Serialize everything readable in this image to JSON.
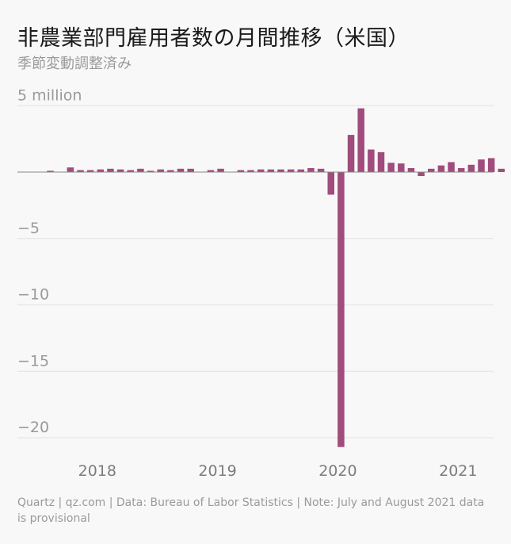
{
  "title": "非農業部門雇用者数の月間推移（米国）",
  "subtitle": "季節変動調整済み",
  "footnote": "Quartz | qz.com | Data: Bureau of Labor Statistics | Note: July and August 2021 data is provisional",
  "colors": {
    "bar": "#a04c7c",
    "grid": "#e2e0e0",
    "zero_line": "#888888",
    "background": "#f9f8f8"
  },
  "chart_data": {
    "type": "bar",
    "unit": "million",
    "title": "非農業部門雇用者数の月間推移（米国）",
    "subtitle": "季節変動調整済み",
    "ylim": [
      -21,
      5
    ],
    "y_ticks": [
      {
        "value": 5,
        "label": "5 million"
      },
      {
        "value": 0,
        "label": ""
      },
      {
        "value": -5,
        "label": "−5"
      },
      {
        "value": -10,
        "label": "−10"
      },
      {
        "value": -15,
        "label": "−15"
      },
      {
        "value": -20,
        "label": "−20"
      }
    ],
    "x_ticks": [
      {
        "month_index": 0,
        "label": "2018"
      },
      {
        "month_index": 12,
        "label": "2019"
      },
      {
        "month_index": 24,
        "label": "2020"
      },
      {
        "month_index": 36,
        "label": "2021"
      }
    ],
    "months": [
      "2017-09",
      "2017-10",
      "2017-11",
      "2017-12",
      "2018-01",
      "2018-02",
      "2018-03",
      "2018-04",
      "2018-05",
      "2018-06",
      "2018-07",
      "2018-08",
      "2018-09",
      "2018-10",
      "2018-11",
      "2018-12",
      "2019-01",
      "2019-02",
      "2019-03",
      "2019-04",
      "2019-05",
      "2019-06",
      "2019-07",
      "2019-08",
      "2019-09",
      "2019-10",
      "2019-11",
      "2019-12",
      "2020-01",
      "2020-02",
      "2020-03",
      "2020-04",
      "2020-05",
      "2020-06",
      "2020-07",
      "2020-08",
      "2020-09",
      "2020-10",
      "2020-11",
      "2020-12",
      "2021-01",
      "2021-02",
      "2021-03",
      "2021-04",
      "2021-05",
      "2021-06",
      "2021-07",
      "2021-08"
    ],
    "values": [
      0.0,
      0.0,
      0.1,
      0.0,
      0.35,
      0.15,
      0.15,
      0.2,
      0.25,
      0.2,
      0.15,
      0.25,
      0.1,
      0.2,
      0.15,
      0.25,
      0.25,
      0.0,
      0.15,
      0.25,
      0.0,
      0.15,
      0.15,
      0.2,
      0.2,
      0.2,
      0.2,
      0.2,
      0.3,
      0.25,
      -1.7,
      -20.7,
      2.8,
      4.8,
      1.7,
      1.5,
      0.7,
      0.65,
      0.3,
      -0.3,
      0.25,
      0.5,
      0.75,
      0.3,
      0.55,
      0.95,
      1.05,
      0.25
    ],
    "grid": true,
    "legend": "none"
  }
}
